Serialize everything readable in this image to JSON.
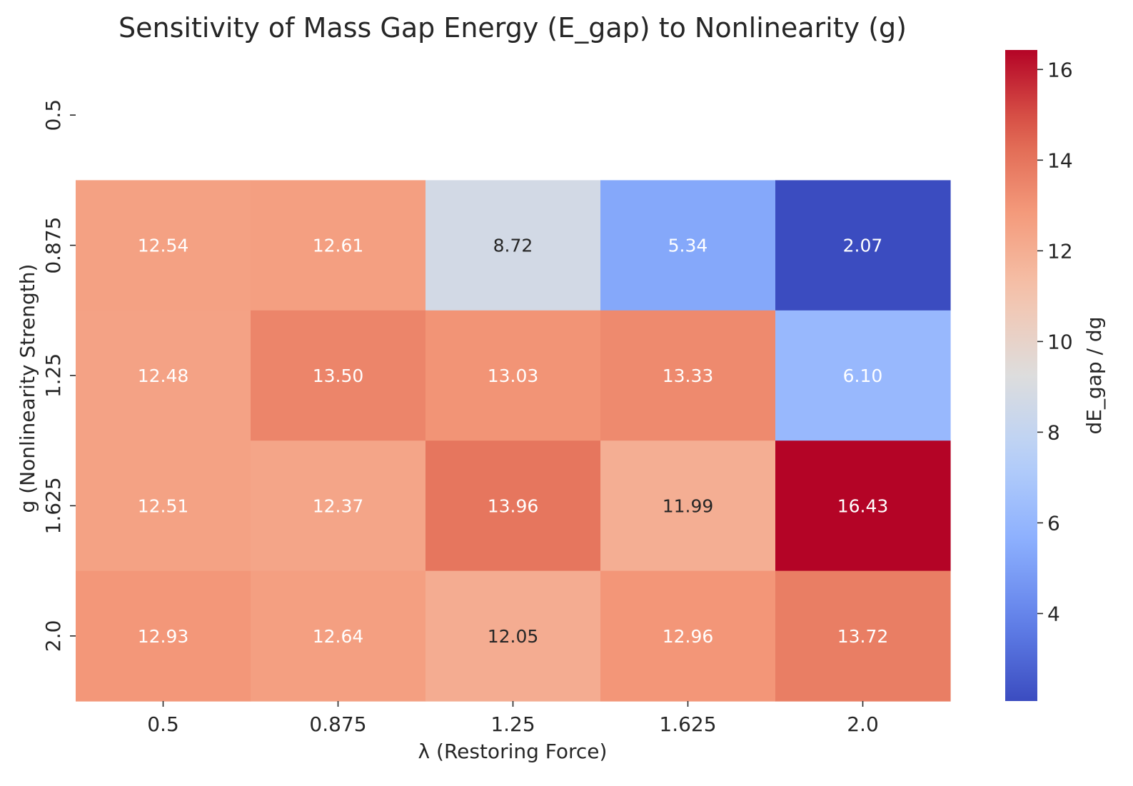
{
  "chart_data": {
    "type": "heatmap",
    "title": "Sensitivity of Mass Gap Energy (E_gap) to Nonlinearity (g)",
    "xlabel": "λ (Restoring Force)",
    "ylabel": "g (Nonlinearity Strength)",
    "x_categories": [
      "0.5",
      "0.875",
      "1.25",
      "1.625",
      "2.0"
    ],
    "y_categories": [
      "0.5",
      "0.875",
      "1.25",
      "1.625",
      "2.0"
    ],
    "values": [
      [
        null,
        null,
        null,
        null,
        null
      ],
      [
        12.54,
        12.61,
        8.72,
        5.34,
        2.07
      ],
      [
        12.48,
        13.5,
        13.03,
        13.33,
        6.1
      ],
      [
        12.51,
        12.37,
        13.96,
        11.99,
        16.43
      ],
      [
        12.93,
        12.64,
        12.05,
        12.96,
        13.72
      ]
    ],
    "colorbar": {
      "label": "dE_gap / dg",
      "vmin": 2.07,
      "vmax": 16.43,
      "ticks": [
        4,
        6,
        8,
        10,
        12,
        14,
        16
      ],
      "colormap": "coolwarm"
    },
    "grid": false
  }
}
